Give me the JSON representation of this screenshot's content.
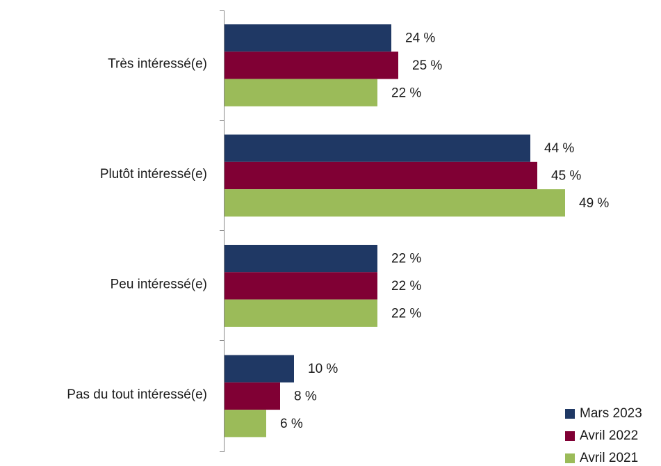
{
  "chart_data": {
    "type": "bar",
    "orientation": "horizontal",
    "categories": [
      "Très intéressé(e)",
      "Plutôt intéressé(e)",
      "Peu intéressé(e)",
      "Pas du tout intéressé(e)"
    ],
    "series": [
      {
        "name": "Mars 2023",
        "color": "#1f3864",
        "values": [
          24,
          44,
          22,
          10
        ],
        "value_labels": [
          "24 %",
          "44 %",
          "22 %",
          "10 %"
        ]
      },
      {
        "name": "Avril 2022",
        "color": "#800034",
        "values": [
          25,
          45,
          22,
          8
        ],
        "value_labels": [
          "25 %",
          "45 %",
          "22 %",
          "8 %"
        ]
      },
      {
        "name": "Avril 2021",
        "color": "#9bbb59",
        "values": [
          22,
          49,
          22,
          6
        ],
        "value_labels": [
          "22 %",
          "49 %",
          "22 %",
          "6 %"
        ]
      }
    ],
    "legend": "bottom-right"
  }
}
